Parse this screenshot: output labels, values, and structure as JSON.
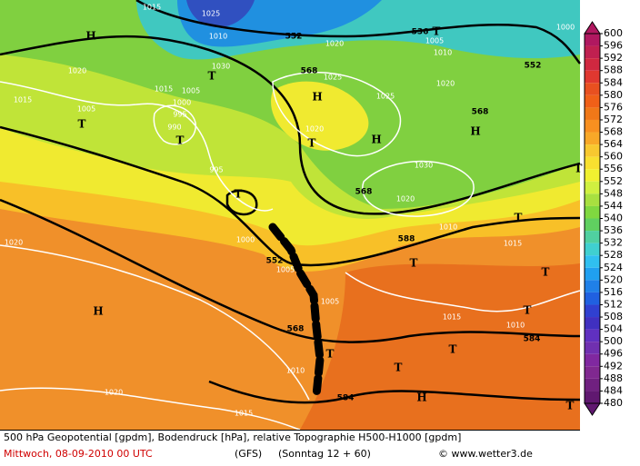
{
  "map": {
    "labels": [
      "H",
      "1015",
      "1025",
      "1010",
      "552",
      "1020",
      "536",
      "T",
      "1005",
      "1000",
      "1010",
      "552",
      "1020",
      "1030",
      "568",
      "T",
      "1025",
      "1020",
      "1015",
      "1005",
      "1015",
      "1005",
      "1000",
      "995",
      "H",
      "1025",
      "568",
      "T",
      "990",
      "T",
      "1020",
      "T",
      "H",
      "H",
      "995",
      "1030",
      "T",
      "T",
      "568",
      "1020",
      "1010",
      "T",
      "1020",
      "1000",
      "588",
      "1015",
      "552",
      "1005",
      "T",
      "T",
      "H",
      "1005",
      "1015",
      "1010",
      "T",
      "568",
      "584",
      "T",
      "T",
      "1010",
      "T",
      "1020",
      "584",
      "H",
      "T",
      "1015"
    ]
  },
  "colorbar": {
    "values": [
      600,
      596,
      592,
      588,
      584,
      580,
      576,
      572,
      568,
      564,
      560,
      556,
      552,
      548,
      544,
      540,
      536,
      532,
      528,
      524,
      520,
      516,
      512,
      508,
      504,
      500,
      496,
      492,
      488,
      484,
      480
    ],
    "colors": [
      "#b01860",
      "#c02050",
      "#d02840",
      "#e03830",
      "#e85020",
      "#f06018",
      "#f07818",
      "#f89020",
      "#f8a828",
      "#f8c830",
      "#f8e030",
      "#f0f030",
      "#d0f040",
      "#a8e040",
      "#80d840",
      "#60d060",
      "#50d0a0",
      "#40d0d0",
      "#30c0f0",
      "#20a0f0",
      "#2080e8",
      "#2060e0",
      "#3040d0",
      "#4030c0",
      "#6030c0",
      "#7030b0",
      "#8028a0",
      "#802890",
      "#702080",
      "#601870"
    ]
  },
  "footer": {
    "description": "500 hPa Geopotential [gpdm], Bodendruck [hPa], relative Topographie H500-H1000 [gpdm]",
    "date": "Mittwoch, 08-09-2010  00 UTC",
    "model": "(GFS)",
    "run": "(Sonntag 12 + 60)",
    "copyright": "© www.wetter3.de"
  }
}
